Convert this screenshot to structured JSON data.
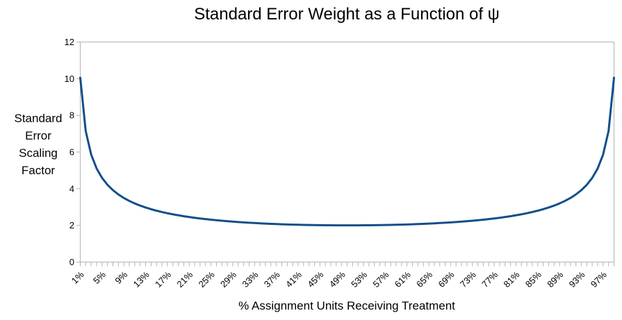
{
  "chart_data": {
    "type": "line",
    "title": "Standard Error Weight as a Function of ψ",
    "xlabel": "% Assignment Units Receiving Treatment",
    "ylabel": "Standard Error Scaling Factor",
    "x_start": 1,
    "x_step": 1,
    "x_end": 99,
    "x_unit": "%",
    "values": [
      10.05,
      7.143,
      5.862,
      5.103,
      4.588,
      4.211,
      3.919,
      3.686,
      3.494,
      3.333,
      3.196,
      3.077,
      2.974,
      2.882,
      2.801,
      2.728,
      2.662,
      2.603,
      2.549,
      2.5,
      2.455,
      2.414,
      2.376,
      2.342,
      2.309,
      2.28,
      2.252,
      2.227,
      2.204,
      2.182,
      2.162,
      2.144,
      2.127,
      2.111,
      2.097,
      2.083,
      2.071,
      2.06,
      2.05,
      2.041,
      2.033,
      2.026,
      2.02,
      2.014,
      2.01,
      2.006,
      2.004,
      2.002,
      2.0,
      2.0,
      2.0,
      2.002,
      2.004,
      2.006,
      2.01,
      2.014,
      2.02,
      2.026,
      2.033,
      2.041,
      2.05,
      2.06,
      2.071,
      2.083,
      2.097,
      2.111,
      2.127,
      2.144,
      2.162,
      2.182,
      2.204,
      2.227,
      2.252,
      2.28,
      2.309,
      2.342,
      2.376,
      2.414,
      2.455,
      2.5,
      2.549,
      2.603,
      2.662,
      2.728,
      2.801,
      2.882,
      2.974,
      3.077,
      3.196,
      3.333,
      3.494,
      3.686,
      3.919,
      4.211,
      4.588,
      5.103,
      5.862,
      7.143,
      10.05
    ],
    "ylim": [
      0,
      12
    ],
    "y_ticks": [
      0,
      2,
      4,
      6,
      8,
      10,
      12
    ],
    "x_label_step": 4,
    "x_tick_labels": [
      "1%",
      "5%",
      "9%",
      "13%",
      "17%",
      "21%",
      "25%",
      "29%",
      "33%",
      "37%",
      "41%",
      "45%",
      "49%",
      "53%",
      "57%",
      "61%",
      "65%",
      "69%",
      "73%",
      "77%",
      "81%",
      "85%",
      "89%",
      "93%",
      "97%"
    ],
    "grid": false,
    "legend": "none",
    "line_color": "#114E8A",
    "axis_color": "#B3B3B3",
    "text_color": "#000000"
  }
}
